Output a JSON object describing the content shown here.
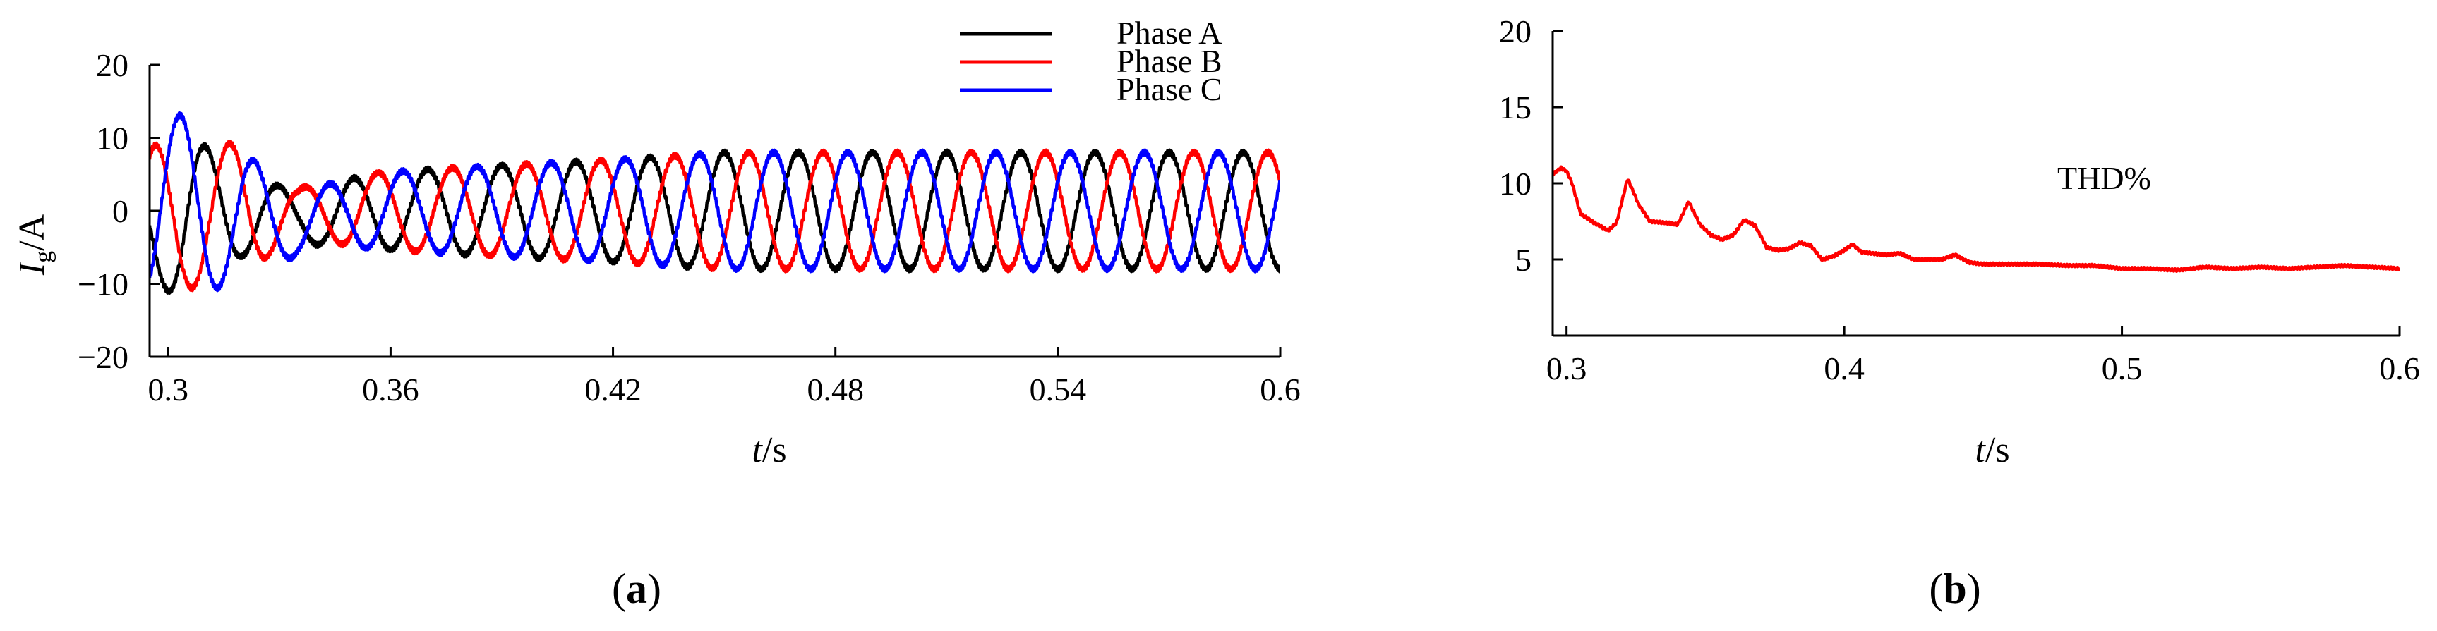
{
  "chart_data": [
    {
      "type": "line",
      "panel_label": "a",
      "xlabel": {
        "italic": "t",
        "rest": "/s"
      },
      "ylabel": {
        "italic": "I",
        "sub": "g",
        "rest": "/A"
      },
      "xlim": [
        0.295,
        0.6
      ],
      "ylim": [
        -20,
        20
      ],
      "xticks": [
        0.3,
        0.36,
        0.42,
        0.48,
        0.54,
        0.6
      ],
      "xtick_labels": [
        "0.3",
        "0.36",
        "0.42",
        "0.48",
        "0.54",
        "0.6"
      ],
      "yticks": [
        -20,
        -10,
        0,
        10,
        20
      ],
      "ytick_labels": [
        "−20",
        "−10",
        "0",
        "10",
        "20"
      ],
      "frequency_hz": 50,
      "legend_position": "top-right",
      "series": [
        {
          "name": "Phase A",
          "color": "#000000",
          "phase_deg": -90,
          "amplitude_envelope": [
            [
              0.295,
              8
            ],
            [
              0.305,
              11
            ],
            [
              0.32,
              6
            ],
            [
              0.335,
              3
            ],
            [
              0.35,
              5
            ],
            [
              0.38,
              6
            ],
            [
              0.42,
              7
            ],
            [
              0.45,
              8
            ],
            [
              0.6,
              8
            ]
          ],
          "offset_envelope": [
            [
              0.295,
              -2
            ],
            [
              0.315,
              0
            ],
            [
              0.34,
              -1
            ],
            [
              0.36,
              0
            ],
            [
              0.6,
              0
            ]
          ]
        },
        {
          "name": "Phase B",
          "color": "#ff0000",
          "phase_deg": 150,
          "amplitude_envelope": [
            [
              0.295,
              12
            ],
            [
              0.305,
              10
            ],
            [
              0.32,
              9
            ],
            [
              0.335,
              3
            ],
            [
              0.35,
              5
            ],
            [
              0.38,
              6
            ],
            [
              0.42,
              7
            ],
            [
              0.45,
              8
            ],
            [
              0.6,
              8
            ]
          ],
          "offset_envelope": [
            [
              0.295,
              -3
            ],
            [
              0.31,
              0
            ],
            [
              0.6,
              0
            ]
          ]
        },
        {
          "name": "Phase C",
          "color": "#0000ff",
          "phase_deg": 30,
          "amplitude_envelope": [
            [
              0.295,
              13
            ],
            [
              0.305,
              12
            ],
            [
              0.32,
              9
            ],
            [
              0.335,
              4
            ],
            [
              0.35,
              5
            ],
            [
              0.38,
              6
            ],
            [
              0.42,
              7
            ],
            [
              0.45,
              8
            ],
            [
              0.6,
              8
            ]
          ],
          "offset_envelope": [
            [
              0.295,
              2
            ],
            [
              0.31,
              0
            ],
            [
              0.335,
              -2
            ],
            [
              0.35,
              0
            ],
            [
              0.6,
              0
            ]
          ]
        }
      ]
    },
    {
      "type": "line",
      "panel_label": "b",
      "xlabel": {
        "italic": "t",
        "rest": "/s"
      },
      "xlim": [
        0.295,
        0.6
      ],
      "ylim": [
        0,
        20
      ],
      "xticks": [
        0.3,
        0.4,
        0.5,
        0.6
      ],
      "xtick_labels": [
        "0.3",
        "0.4",
        "0.5",
        "0.6"
      ],
      "yticks": [
        5,
        10,
        15,
        20
      ],
      "ytick_labels": [
        "5",
        "10",
        "15",
        "20"
      ],
      "annotation": "THD%",
      "series": [
        {
          "name": "THD%",
          "color": "#ff0000",
          "x": [
            0.295,
            0.298,
            0.3,
            0.302,
            0.305,
            0.31,
            0.315,
            0.318,
            0.322,
            0.326,
            0.33,
            0.336,
            0.34,
            0.344,
            0.348,
            0.352,
            0.356,
            0.36,
            0.364,
            0.368,
            0.372,
            0.376,
            0.38,
            0.384,
            0.388,
            0.392,
            0.396,
            0.4,
            0.403,
            0.406,
            0.41,
            0.415,
            0.42,
            0.425,
            0.43,
            0.435,
            0.44,
            0.445,
            0.45,
            0.46,
            0.47,
            0.48,
            0.49,
            0.5,
            0.51,
            0.52,
            0.53,
            0.54,
            0.55,
            0.56,
            0.57,
            0.58,
            0.59,
            0.6
          ],
          "y": [
            10.6,
            11.0,
            10.8,
            10.0,
            8.0,
            7.4,
            6.9,
            7.4,
            10.3,
            8.6,
            7.5,
            7.4,
            7.3,
            8.8,
            7.3,
            6.6,
            6.3,
            6.6,
            7.6,
            7.2,
            5.8,
            5.6,
            5.7,
            6.1,
            5.9,
            5.0,
            5.2,
            5.6,
            6.0,
            5.5,
            5.4,
            5.3,
            5.4,
            5.0,
            5.0,
            5.0,
            5.3,
            4.8,
            4.7,
            4.7,
            4.7,
            4.6,
            4.6,
            4.4,
            4.4,
            4.3,
            4.5,
            4.4,
            4.5,
            4.4,
            4.5,
            4.6,
            4.5,
            4.4
          ]
        }
      ]
    }
  ]
}
